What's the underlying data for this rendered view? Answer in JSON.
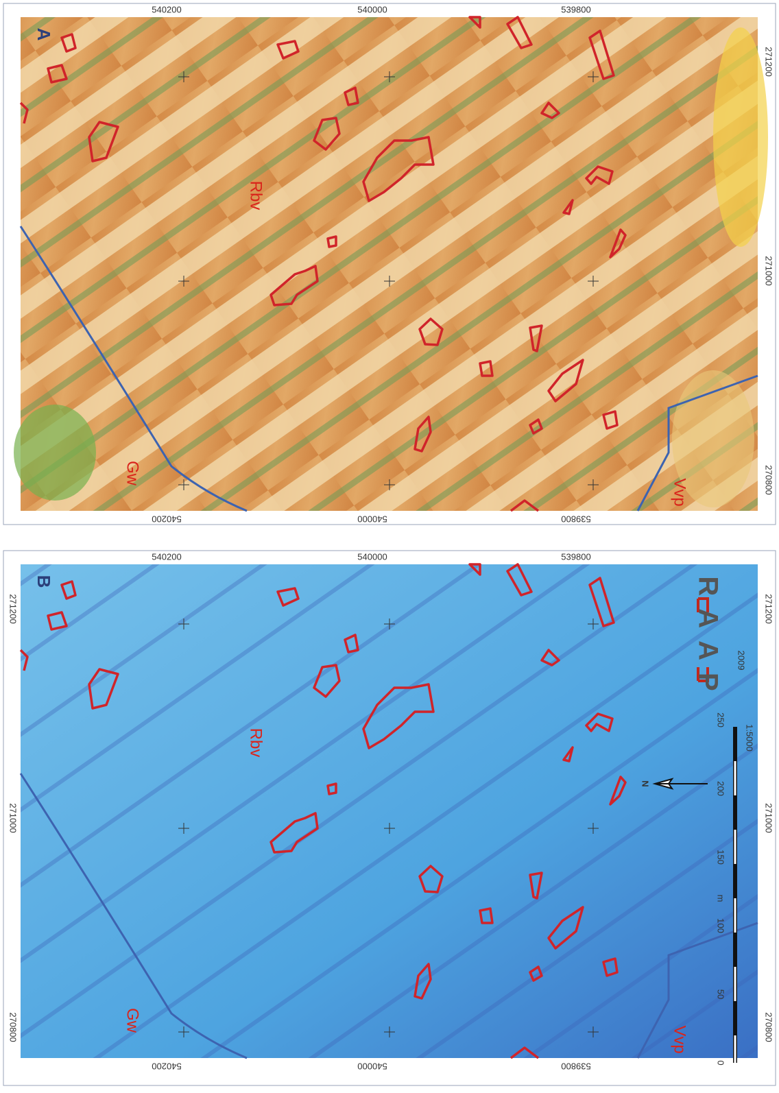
{
  "panels": [
    {
      "label": "B",
      "x_coords": [
        "540200",
        "540000",
        "539800"
      ],
      "y_coords": [
        "271200",
        "271000",
        "270800"
      ],
      "units": [
        "Gw",
        "Rbv",
        "Vvp"
      ]
    },
    {
      "label": "A",
      "x_coords": [
        "540200",
        "540000",
        "539800"
      ],
      "y_coords": [
        "271200",
        "271000",
        "270800"
      ],
      "units": [
        "Gw",
        "Rbv",
        "Vvp"
      ],
      "scale": {
        "ticks": [
          "0",
          "50",
          "100",
          "150",
          "200",
          "250"
        ],
        "unit": "m",
        "ratio": "1:5000"
      },
      "north": "N",
      "logo": "RAAP",
      "year": "2009"
    }
  ]
}
